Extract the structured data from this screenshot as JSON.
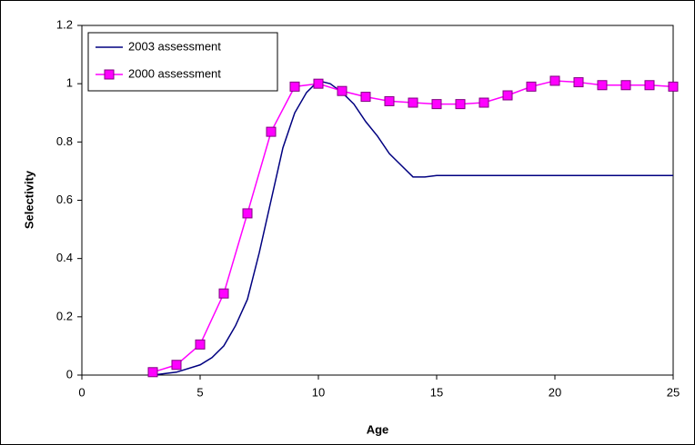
{
  "chart_data": {
    "type": "line",
    "xlabel": "Age",
    "ylabel": "Selectivity",
    "xlim": [
      0,
      25
    ],
    "xticks": [
      0,
      5,
      10,
      15,
      20,
      25
    ],
    "ylim": [
      0,
      1.2
    ],
    "yticks": [
      0,
      0.2,
      0.4,
      0.6,
      0.8,
      1,
      1.2
    ],
    "grid": false,
    "legend": "upper left",
    "series": [
      {
        "name": "2003 assessment",
        "color": "#000080",
        "marker": false,
        "x": [
          3,
          4,
          5,
          5.5,
          6,
          6.5,
          7,
          7.5,
          8,
          8.5,
          9,
          9.5,
          10,
          10.5,
          11,
          11.5,
          12,
          12.5,
          13,
          13.5,
          14,
          14.5,
          15,
          20,
          25
        ],
        "values": [
          0,
          0.01,
          0.035,
          0.06,
          0.1,
          0.17,
          0.26,
          0.42,
          0.6,
          0.78,
          0.9,
          0.97,
          1.01,
          1.0,
          0.97,
          0.93,
          0.87,
          0.82,
          0.76,
          0.72,
          0.68,
          0.68,
          0.685,
          0.685,
          0.685
        ]
      },
      {
        "name": "2000 assessment",
        "color": "#ff00ff",
        "marker": true,
        "x": [
          3,
          4,
          5,
          6,
          7,
          8,
          9,
          10,
          11,
          12,
          13,
          14,
          15,
          16,
          17,
          18,
          19,
          20,
          21,
          22,
          23,
          24,
          25
        ],
        "values": [
          0.01,
          0.035,
          0.105,
          0.28,
          0.555,
          0.835,
          0.99,
          1.0,
          0.975,
          0.955,
          0.94,
          0.935,
          0.93,
          0.93,
          0.935,
          0.96,
          0.99,
          1.01,
          1.005,
          0.995,
          0.995,
          0.995,
          0.99
        ]
      }
    ]
  }
}
